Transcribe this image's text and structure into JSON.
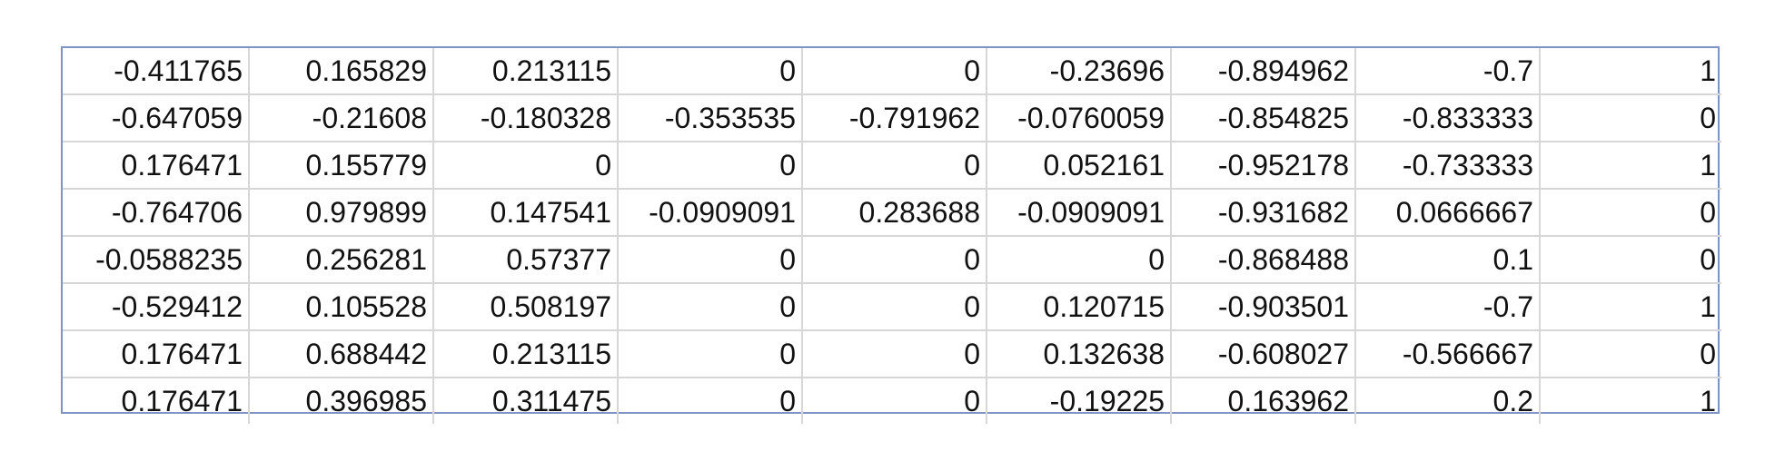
{
  "table": {
    "rows": [
      [
        "-0.411765",
        "0.165829",
        "0.213115",
        "0",
        "0",
        "-0.23696",
        "-0.894962",
        "-0.7",
        "1"
      ],
      [
        "-0.647059",
        "-0.21608",
        "-0.180328",
        "-0.353535",
        "-0.791962",
        "-0.0760059",
        "-0.854825",
        "-0.833333",
        "0"
      ],
      [
        "0.176471",
        "0.155779",
        "0",
        "0",
        "0",
        "0.052161",
        "-0.952178",
        "-0.733333",
        "1"
      ],
      [
        "-0.764706",
        "0.979899",
        "0.147541",
        "-0.0909091",
        "0.283688",
        "-0.0909091",
        "-0.931682",
        "0.0666667",
        "0"
      ],
      [
        "-0.0588235",
        "0.256281",
        "0.57377",
        "0",
        "0",
        "0",
        "-0.868488",
        "0.1",
        "0"
      ],
      [
        "-0.529412",
        "0.105528",
        "0.508197",
        "0",
        "0",
        "0.120715",
        "-0.903501",
        "-0.7",
        "1"
      ],
      [
        "0.176471",
        "0.688442",
        "0.213115",
        "0",
        "0",
        "0.132638",
        "-0.608027",
        "-0.566667",
        "0"
      ],
      [
        "0.176471",
        "0.396985",
        "0.311475",
        "0",
        "0",
        "-0.19225",
        "0.163962",
        "0.2",
        "1"
      ]
    ]
  },
  "colors": {
    "outer_border": "#7f93c4",
    "grid_line": "#d7d7d7",
    "text": "#111111"
  }
}
